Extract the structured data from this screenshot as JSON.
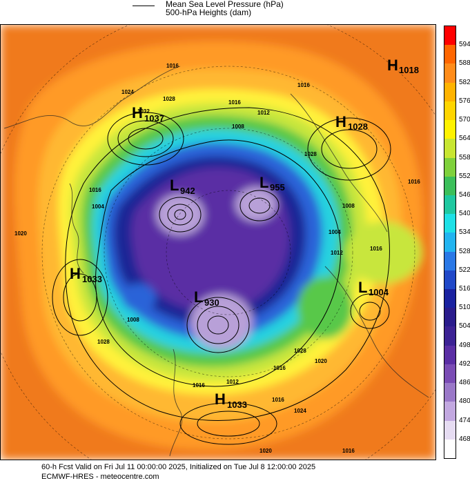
{
  "legend": {
    "title_line1": "Mean Sea Level Pressure (hPa)",
    "title_line2": "500-hPa Heights (dam)"
  },
  "footer": {
    "line1": "60-h Fcst Valid on Fri Jul 11 00:00:00 2025, Initialized on Tue Jul  8 12:00:00 2025",
    "line2": "ECMWF-HRES  - meteocentre.com"
  },
  "colorbar": {
    "labels": [
      "594",
      "588",
      "582",
      "576",
      "570",
      "564",
      "558",
      "552",
      "546",
      "540",
      "534",
      "528",
      "522",
      "516",
      "510",
      "504",
      "498",
      "492",
      "486",
      "480",
      "474",
      "468"
    ],
    "colors": [
      "#ff0000",
      "#ff6600",
      "#ff8c1a",
      "#ffb300",
      "#ffd500",
      "#fff200",
      "#c8e632",
      "#7fd13c",
      "#3cbf5a",
      "#1fc8a0",
      "#1ee0e6",
      "#22b4f0",
      "#2a78e6",
      "#2048c8",
      "#1a22a0",
      "#2a1c8c",
      "#3c2294",
      "#5a2ea4",
      "#7a4cb4",
      "#9a78c8",
      "#c2a8e0",
      "#e6dcf2",
      "#ffffff"
    ]
  },
  "pressure_centers": [
    {
      "type": "H",
      "value": "1018",
      "name": "high-1018"
    },
    {
      "type": "H",
      "value": "1037",
      "name": "high-1037"
    },
    {
      "type": "H",
      "value": "1028",
      "name": "high-1028"
    },
    {
      "type": "L",
      "value": "942",
      "name": "low-942"
    },
    {
      "type": "L",
      "value": "955",
      "name": "low-955"
    },
    {
      "type": "H",
      "value": "1033",
      "name": "high-1033-west"
    },
    {
      "type": "L",
      "value": "1004",
      "name": "low-1004"
    },
    {
      "type": "L",
      "value": "930",
      "name": "low-930"
    },
    {
      "type": "H",
      "value": "1033",
      "name": "high-1033-south"
    }
  ],
  "isobar_labels": [
    "1016",
    "1024",
    "1028",
    "1032",
    "1016",
    "1012",
    "1008",
    "1028",
    "1016",
    "1008",
    "1004",
    "1020",
    "1016",
    "1004",
    "1016",
    "1012",
    "1016",
    "1016",
    "1024",
    "1028",
    "1028",
    "1008",
    "1016",
    "1012",
    "1016",
    "1020",
    "1016",
    "1020"
  ],
  "colors": {
    "warm_orange": "#f07a1e",
    "orange": "#ff9a28",
    "yellow_orange": "#ffb830",
    "yellow": "#fff23a",
    "green_yellow": "#c8e63c",
    "green": "#58c84a",
    "cyan": "#28d2e0",
    "blue": "#2a64d8",
    "navy": "#1e2896",
    "purple": "#5a2ea4",
    "lavender": "#b8a0d8"
  }
}
